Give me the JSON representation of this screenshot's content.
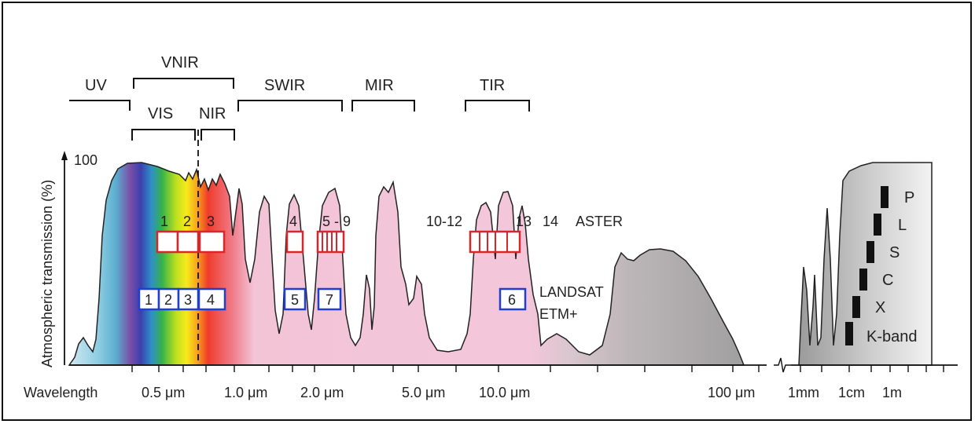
{
  "y_axis": {
    "label": "Atmospheric transmission (%)",
    "max_label": "100"
  },
  "x_axis": {
    "label": "Wavelength",
    "ticks_optical": [
      "0.5 μm",
      "1.0 μm",
      "2.0 μm",
      "5.0 μm",
      "10.0 μm",
      "100 μm"
    ],
    "ticks_radio": [
      "1mm",
      "1cm",
      "1m"
    ]
  },
  "regions": {
    "uv": "UV",
    "vnir": "VNIR",
    "vis": "VIS",
    "nir": "NIR",
    "swir": "SWIR",
    "mir": "MIR",
    "tir": "TIR"
  },
  "aster": {
    "name": "ASTER",
    "labels": [
      "1",
      "2",
      "3",
      "4",
      "5 - 9",
      "10-12",
      "13",
      "14"
    ],
    "color": "#d9262b"
  },
  "landsat": {
    "name_line1": "LANDSAT",
    "name_line2": "ETM+",
    "bands": [
      "1",
      "2",
      "3",
      "4",
      "5",
      "7",
      "6"
    ],
    "color": "#1f3fd1"
  },
  "radar": {
    "bands": [
      "P",
      "L",
      "S",
      "C",
      "X",
      "K-band"
    ]
  },
  "colors": {
    "transmission_fill": "#f2c6dc",
    "far_ir_fill": "#a8a8a8",
    "outline": "#222222"
  }
}
